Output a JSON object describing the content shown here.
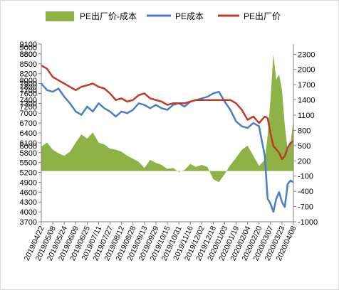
{
  "chart_data": {
    "type": "line",
    "legend_position": "top",
    "grid": false,
    "left_axis": {
      "min": 3700,
      "max": 9100,
      "step": 100,
      "tick_labels": [
        "3700",
        "4000",
        "4300",
        "4600",
        "4900",
        "5200",
        "5500",
        "5800",
        "6100",
        "6400",
        "6700",
        "7000",
        "7300",
        "7600",
        "7900",
        "8200",
        "8500",
        "8800",
        "9100"
      ],
      "tick_values": [
        3700,
        4000,
        4300,
        4600,
        4900,
        5200,
        5500,
        5800,
        6100,
        6400,
        6700,
        7000,
        7300,
        7600,
        7900,
        8200,
        8500,
        8800,
        9100
      ],
      "minor_labels": [
        {
          "value": 6000,
          "text": "6000"
        },
        {
          "value": 7200,
          "text": "7200"
        },
        {
          "value": 7400,
          "text": "7400"
        },
        {
          "value": 7700,
          "text": "7700"
        },
        {
          "value": 7800,
          "text": "7800"
        },
        {
          "value": 8000,
          "text": "8000"
        },
        {
          "value": 8800,
          "text": "8800"
        },
        {
          "value": 9000,
          "text": "9000"
        }
      ]
    },
    "right_axis": {
      "min": -1000,
      "max": 2500,
      "tick_values": [
        -1000,
        -700,
        -400,
        -100,
        200,
        500,
        800,
        1100,
        1400,
        1700,
        2000,
        2300
      ],
      "tick_labels": [
        "-1000",
        "-700",
        "-400",
        "-100",
        "200",
        "500",
        "800",
        "1100",
        "1400",
        "1700",
        "2000",
        "2300"
      ]
    },
    "x_tick_labels": [
      "2019/04/22",
      "2019/05/08",
      "2019/05/24",
      "2019/06/09",
      "2019/06/25",
      "2019/07/11",
      "2019/07/27",
      "2019/08/12",
      "2019/08/28",
      "2019/09/13",
      "2019/09/29",
      "2019/10/15",
      "2019/10/31",
      "2019/11/16",
      "2019/12/02",
      "2019/12/18",
      "2020/01/03",
      "2020/01/19",
      "2020/02/04",
      "2020/02/20",
      "2020/03/07",
      "2020/03/23",
      "2020/04/08"
    ],
    "x_range": [
      "2019/04/22",
      "2020/04/08"
    ],
    "series": [
      {
        "name": "PE出厂价-成本",
        "kind": "area",
        "axis": "right",
        "color": "#8db246",
        "x": [
          "2019/04/22",
          "2019/04/30",
          "2019/05/08",
          "2019/05/16",
          "2019/05/24",
          "2019/06/01",
          "2019/06/09",
          "2019/06/17",
          "2019/06/25",
          "2019/07/03",
          "2019/07/11",
          "2019/07/19",
          "2019/07/27",
          "2019/08/04",
          "2019/08/12",
          "2019/08/20",
          "2019/08/28",
          "2019/09/05",
          "2019/09/13",
          "2019/09/21",
          "2019/09/29",
          "2019/10/07",
          "2019/10/15",
          "2019/10/23",
          "2019/10/31",
          "2019/11/08",
          "2019/11/16",
          "2019/11/24",
          "2019/12/02",
          "2019/12/10",
          "2019/12/18",
          "2019/12/26",
          "2020/01/03",
          "2020/01/11",
          "2020/01/19",
          "2020/01/27",
          "2020/02/04",
          "2020/02/12",
          "2020/02/20",
          "2020/02/28",
          "2020/03/03",
          "2020/03/07",
          "2020/03/11",
          "2020/03/15",
          "2020/03/19",
          "2020/03/23",
          "2020/03/27",
          "2020/03/31",
          "2020/04/04",
          "2020/04/08"
        ],
        "values": [
          480,
          560,
          420,
          350,
          300,
          380,
          560,
          720,
          640,
          760,
          560,
          520,
          440,
          420,
          380,
          300,
          240,
          180,
          60,
          220,
          160,
          120,
          40,
          60,
          -20,
          20,
          140,
          80,
          120,
          80,
          -160,
          -220,
          -60,
          120,
          260,
          420,
          500,
          300,
          100,
          220,
          700,
          1400,
          2300,
          1800,
          1900,
          1600,
          900,
          400,
          550,
          1000
        ]
      },
      {
        "name": "PE成本",
        "kind": "line",
        "axis": "left",
        "color": "#4a7ec4",
        "x": [
          "2019/04/22",
          "2019/04/30",
          "2019/05/08",
          "2019/05/16",
          "2019/05/24",
          "2019/06/01",
          "2019/06/09",
          "2019/06/17",
          "2019/06/25",
          "2019/07/03",
          "2019/07/11",
          "2019/07/19",
          "2019/07/27",
          "2019/08/04",
          "2019/08/12",
          "2019/08/20",
          "2019/08/28",
          "2019/09/05",
          "2019/09/13",
          "2019/09/21",
          "2019/09/29",
          "2019/10/07",
          "2019/10/15",
          "2019/10/23",
          "2019/10/31",
          "2019/11/08",
          "2019/11/16",
          "2019/11/24",
          "2019/12/02",
          "2019/12/10",
          "2019/12/18",
          "2019/12/26",
          "2020/01/03",
          "2020/01/11",
          "2020/01/19",
          "2020/01/27",
          "2020/02/04",
          "2020/02/12",
          "2020/02/20",
          "2020/02/28",
          "2020/03/03",
          "2020/03/07",
          "2020/03/11",
          "2020/03/15",
          "2020/03/19",
          "2020/03/23",
          "2020/03/27",
          "2020/03/31",
          "2020/04/04",
          "2020/04/08"
        ],
        "values": [
          7900,
          7700,
          7650,
          7750,
          7500,
          7300,
          7050,
          6950,
          7200,
          7050,
          7300,
          7150,
          7050,
          6900,
          7050,
          7000,
          7100,
          7300,
          7250,
          7150,
          7250,
          7150,
          7100,
          7250,
          7300,
          7200,
          7350,
          7400,
          7450,
          7500,
          7600,
          7650,
          7350,
          7100,
          6750,
          6600,
          6550,
          6700,
          6600,
          5700,
          4400,
          4250,
          4000,
          4400,
          4600,
          4300,
          4150,
          4850,
          4950,
          4900
        ]
      },
      {
        "name": "PE出厂价",
        "kind": "line",
        "axis": "left",
        "color": "#c0392b",
        "x": [
          "2019/04/22",
          "2019/04/30",
          "2019/05/08",
          "2019/05/16",
          "2019/05/24",
          "2019/06/01",
          "2019/06/09",
          "2019/06/17",
          "2019/06/25",
          "2019/07/03",
          "2019/07/11",
          "2019/07/19",
          "2019/07/27",
          "2019/08/04",
          "2019/08/12",
          "2019/08/20",
          "2019/08/28",
          "2019/09/05",
          "2019/09/13",
          "2019/09/21",
          "2019/09/29",
          "2019/10/07",
          "2019/10/15",
          "2019/10/23",
          "2019/10/31",
          "2019/11/08",
          "2019/11/16",
          "2019/11/24",
          "2019/12/02",
          "2019/12/10",
          "2019/12/18",
          "2019/12/26",
          "2020/01/03",
          "2020/01/11",
          "2020/01/19",
          "2020/01/27",
          "2020/02/04",
          "2020/02/12",
          "2020/02/20",
          "2020/02/28",
          "2020/03/03",
          "2020/03/07",
          "2020/03/11",
          "2020/03/15",
          "2020/03/19",
          "2020/03/23",
          "2020/03/27",
          "2020/03/31",
          "2020/04/04",
          "2020/04/08"
        ],
        "values": [
          8450,
          8350,
          8100,
          8000,
          7900,
          7800,
          7700,
          7800,
          7850,
          7900,
          7800,
          7750,
          7600,
          7400,
          7450,
          7350,
          7400,
          7550,
          7600,
          7450,
          7400,
          7350,
          7250,
          7300,
          7300,
          7300,
          7350,
          7400,
          7400,
          7400,
          7400,
          7400,
          7400,
          7400,
          7300,
          7100,
          6800,
          6900,
          6700,
          6900,
          6850,
          6400,
          6000,
          5900,
          5800,
          5600,
          5700,
          5950,
          6100,
          6150
        ]
      }
    ]
  }
}
